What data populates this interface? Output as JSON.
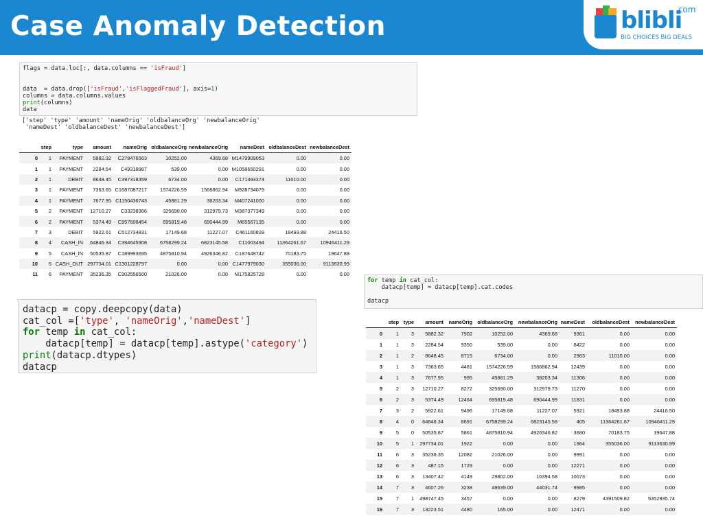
{
  "header": {
    "title": "Case Anomaly Detection",
    "brand_color": "#1a87d0"
  },
  "logo": {
    "word": "blibli",
    "suffix": ".com",
    "tagline": "BIG CHOICES  BIG DEALS"
  },
  "cell1": {
    "lines": [
      [
        [
          "flags = data.loc[:, data.columns == ",
          ""
        ],
        [
          "'isFraud'",
          "str"
        ],
        [
          "]",
          ""
        ]
      ],
      [],
      [],
      [
        [
          "data  = data.drop([",
          ""
        ],
        [
          "'isFraud'",
          "str"
        ],
        [
          ",",
          ""
        ],
        [
          "'isFlaggedFraud'",
          "str"
        ],
        [
          "], axis=",
          ""
        ],
        [
          "1",
          "num"
        ],
        [
          ")",
          ""
        ]
      ],
      [
        [
          "columns = data.columns.values",
          ""
        ]
      ],
      [
        [
          "print",
          "bi"
        ],
        [
          "(columns)",
          ""
        ]
      ],
      [
        [
          "data",
          ""
        ]
      ]
    ]
  },
  "output1": [
    "['step' 'type' 'amount' 'nameOrig' 'oldbalanceOrg' 'newbalanceOrig'",
    " 'nameDest' 'oldbalanceDest' 'newbalanceDest']"
  ],
  "table1": {
    "columns": [
      "",
      "step",
      "type",
      "amount",
      "nameOrig",
      "oldbalanceOrg",
      "newbalanceOrig",
      "nameDest",
      "oldbalanceDest",
      "newbalanceDest"
    ],
    "rows": [
      [
        "0",
        "1",
        "PAYMENT",
        "5882.32",
        "C278476563",
        "10252.00",
        "4369.68",
        "M1479909053",
        "0.00",
        "0.00"
      ],
      [
        "1",
        "1",
        "PAYMENT",
        "2284.54",
        "C49318987",
        "539.00",
        "0.00",
        "M1058650291",
        "0.00",
        "0.00"
      ],
      [
        "2",
        "1",
        "DEBIT",
        "8648.45",
        "C397318359",
        "6734.00",
        "0.00",
        "C171493374",
        "11010.00",
        "0.00"
      ],
      [
        "3",
        "1",
        "PAYMENT",
        "7363.65",
        "C1687087217",
        "1574226.59",
        "1566862.94",
        "M928734079",
        "0.00",
        "0.00"
      ],
      [
        "4",
        "1",
        "PAYMENT",
        "7677.95",
        "C1150436743",
        "45881.29",
        "38203.34",
        "M407241000",
        "0.00",
        "0.00"
      ],
      [
        "5",
        "2",
        "PAYMENT",
        "12710.27",
        "C33238366",
        "325690.00",
        "312979.73",
        "M387377349",
        "0.00",
        "0.00"
      ],
      [
        "6",
        "2",
        "PAYMENT",
        "5374.49",
        "C957608454",
        "695819.48",
        "690444.99",
        "M65567135",
        "0.00",
        "0.00"
      ],
      [
        "7",
        "3",
        "DEBIT",
        "5922.61",
        "C512734831",
        "17149.68",
        "11227.07",
        "C461160828",
        "18493.88",
        "24416.50"
      ],
      [
        "8",
        "4",
        "CASH_IN",
        "64846.34",
        "C394645908",
        "6758299.24",
        "6823145.58",
        "C11003494",
        "11364261.67",
        "10946411.29"
      ],
      [
        "9",
        "5",
        "CASH_IN",
        "50535.87",
        "C189993695",
        "4875810.94",
        "4926346.82",
        "C187649742",
        "70183.75",
        "19647.88"
      ],
      [
        "10",
        "5",
        "CASH_OUT",
        "297734.01",
        "C1301228797",
        "0.00",
        "0.00",
        "C1477979030",
        "355036.00",
        "9113630.99"
      ],
      [
        "11",
        "6",
        "PAYMENT",
        "35236.35",
        "C902556500",
        "21026.00",
        "0.00",
        "M175825728",
        "0.00",
        "0.00"
      ]
    ]
  },
  "cell2": {
    "lines": [
      [
        [
          "datacp = copy.deepcopy(data)",
          ""
        ]
      ],
      [
        [
          "cat_col =[",
          ""
        ],
        [
          "'type'",
          "str"
        ],
        [
          ", ",
          ""
        ],
        [
          "'nameOrig'",
          "str"
        ],
        [
          ",",
          ""
        ],
        [
          "'nameDest'",
          "str"
        ],
        [
          "]",
          ""
        ]
      ],
      [
        [
          "for",
          "kw"
        ],
        [
          " temp ",
          ""
        ],
        [
          "in",
          "kw"
        ],
        [
          " cat_col:",
          ""
        ]
      ],
      [
        [
          "    datacp[temp] = datacp[temp].astype(",
          ""
        ],
        [
          "'category'",
          "str"
        ],
        [
          ")",
          ""
        ]
      ],
      [
        [
          "print",
          "bi"
        ],
        [
          "(datacp.dtypes)",
          ""
        ]
      ],
      [
        [
          "datacp",
          ""
        ]
      ]
    ]
  },
  "cell3": {
    "lines": [
      [
        [
          "for",
          "kw"
        ],
        [
          " temp ",
          ""
        ],
        [
          "in",
          "kw"
        ],
        [
          " cat_col:",
          ""
        ]
      ],
      [
        [
          "    datacp[temp] = datacp[temp].cat.codes",
          ""
        ]
      ],
      [],
      [
        [
          "datacp",
          ""
        ]
      ]
    ]
  },
  "table2": {
    "columns": [
      "",
      "step",
      "type",
      "amount",
      "nameOrig",
      "oldbalanceOrg",
      "newbalanceOrig",
      "nameDest",
      "oldbalanceDest",
      "newbalanceDest"
    ],
    "rows": [
      [
        "0",
        "1",
        "3",
        "5882.32",
        "7902",
        "10252.00",
        "4369.68",
        "9361",
        "0.00",
        "0.00"
      ],
      [
        "1",
        "1",
        "3",
        "2284.54",
        "9350",
        "539.00",
        "0.00",
        "8422",
        "0.00",
        "0.00"
      ],
      [
        "2",
        "1",
        "2",
        "8648.45",
        "8715",
        "6734.00",
        "0.00",
        "2963",
        "11010.00",
        "0.00"
      ],
      [
        "3",
        "1",
        "3",
        "7363.65",
        "4481",
        "1574226.59",
        "1566862.94",
        "12439",
        "0.00",
        "0.00"
      ],
      [
        "4",
        "1",
        "3",
        "7677.95",
        "995",
        "45881.29",
        "38203.34",
        "11306",
        "0.00",
        "0.00"
      ],
      [
        "5",
        "2",
        "3",
        "12710.27",
        "8272",
        "325690.00",
        "312979.73",
        "11270",
        "0.00",
        "0.00"
      ],
      [
        "6",
        "2",
        "3",
        "5374.49",
        "12464",
        "695819.48",
        "690444.99",
        "11831",
        "0.00",
        "0.00"
      ],
      [
        "7",
        "3",
        "2",
        "5922.61",
        "9496",
        "17149.68",
        "11227.07",
        "5921",
        "18493.88",
        "24416.50"
      ],
      [
        "8",
        "4",
        "0",
        "64846.34",
        "8691",
        "6758299.24",
        "6823145.58",
        "405",
        "11364261.67",
        "10946411.29"
      ],
      [
        "9",
        "5",
        "0",
        "50535.87",
        "5861",
        "4875810.94",
        "4926346.82",
        "3680",
        "70183.75",
        "19647.88"
      ],
      [
        "10",
        "5",
        "1",
        "297734.01",
        "1922",
        "0.00",
        "0.00",
        "1964",
        "355036.00",
        "9113630.99"
      ],
      [
        "11",
        "6",
        "3",
        "35236.35",
        "12082",
        "21026.00",
        "0.00",
        "9991",
        "0.00",
        "0.00"
      ],
      [
        "12",
        "6",
        "3",
        "487.15",
        "1729",
        "0.00",
        "0.00",
        "12271",
        "0.00",
        "0.00"
      ],
      [
        "13",
        "6",
        "3",
        "13407.42",
        "4149",
        "29802.00",
        "16394.58",
        "10073",
        "0.00",
        "0.00"
      ],
      [
        "14",
        "7",
        "3",
        "4607.26",
        "3238",
        "48639.00",
        "44031.74",
        "9985",
        "0.00",
        "0.00"
      ],
      [
        "15",
        "7",
        "1",
        "498747.45",
        "3457",
        "0.00",
        "0.00",
        "8279",
        "4391509.82",
        "5352935.74"
      ],
      [
        "16",
        "7",
        "3",
        "13223.51",
        "4480",
        "165.00",
        "0.00",
        "12471",
        "0.00",
        "0.00"
      ]
    ]
  }
}
